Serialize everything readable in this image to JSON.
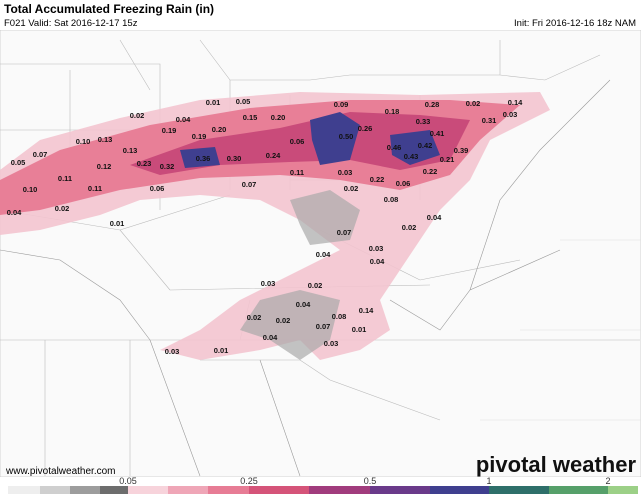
{
  "header": {
    "title": "Total Accumulated Freezing Rain (in)",
    "valid": "F021 Valid: Sat 2016-12-17 15z",
    "init": "Init: Fri 2016-12-16 18z NAM"
  },
  "map_labels": [
    "0.01",
    "0.05",
    "0.02",
    "0.04",
    "0.15",
    "0.20",
    "0.09",
    "0.18",
    "0.28",
    "0.02",
    "0.14",
    "0.19",
    "0.20",
    "0.26",
    "0.33",
    "0.31",
    "0.03",
    "0.10",
    "0.13",
    "0.19",
    "0.50",
    "0.41",
    "0.07",
    "0.13",
    "0.06",
    "0.46",
    "0.42",
    "0.39",
    "0.05",
    "0.12",
    "0.23",
    "0.32",
    "0.36",
    "0.30",
    "0.24",
    "0.43",
    "0.21",
    "0.11",
    "0.11",
    "0.22",
    "0.22",
    "0.03",
    "0.10",
    "0.11",
    "0.06",
    "0.07",
    "0.02",
    "0.06",
    "0.02",
    "0.08",
    "0.04",
    "0.04",
    "0.01",
    "0.02",
    "0.07",
    "0.03",
    "0.04",
    "0.04",
    "0.03",
    "0.02",
    "0.04",
    "0.02",
    "0.02",
    "0.08",
    "0.14",
    "0.07",
    "0.01",
    "0.04",
    "0.03",
    "0.03",
    "0.01"
  ],
  "legend": {
    "ticks": [
      "0.05",
      "0.25",
      "0.5",
      "1",
      "2"
    ]
  },
  "footer": {
    "website": "www.pivotalweather.com",
    "logo": "pivotal weather"
  }
}
